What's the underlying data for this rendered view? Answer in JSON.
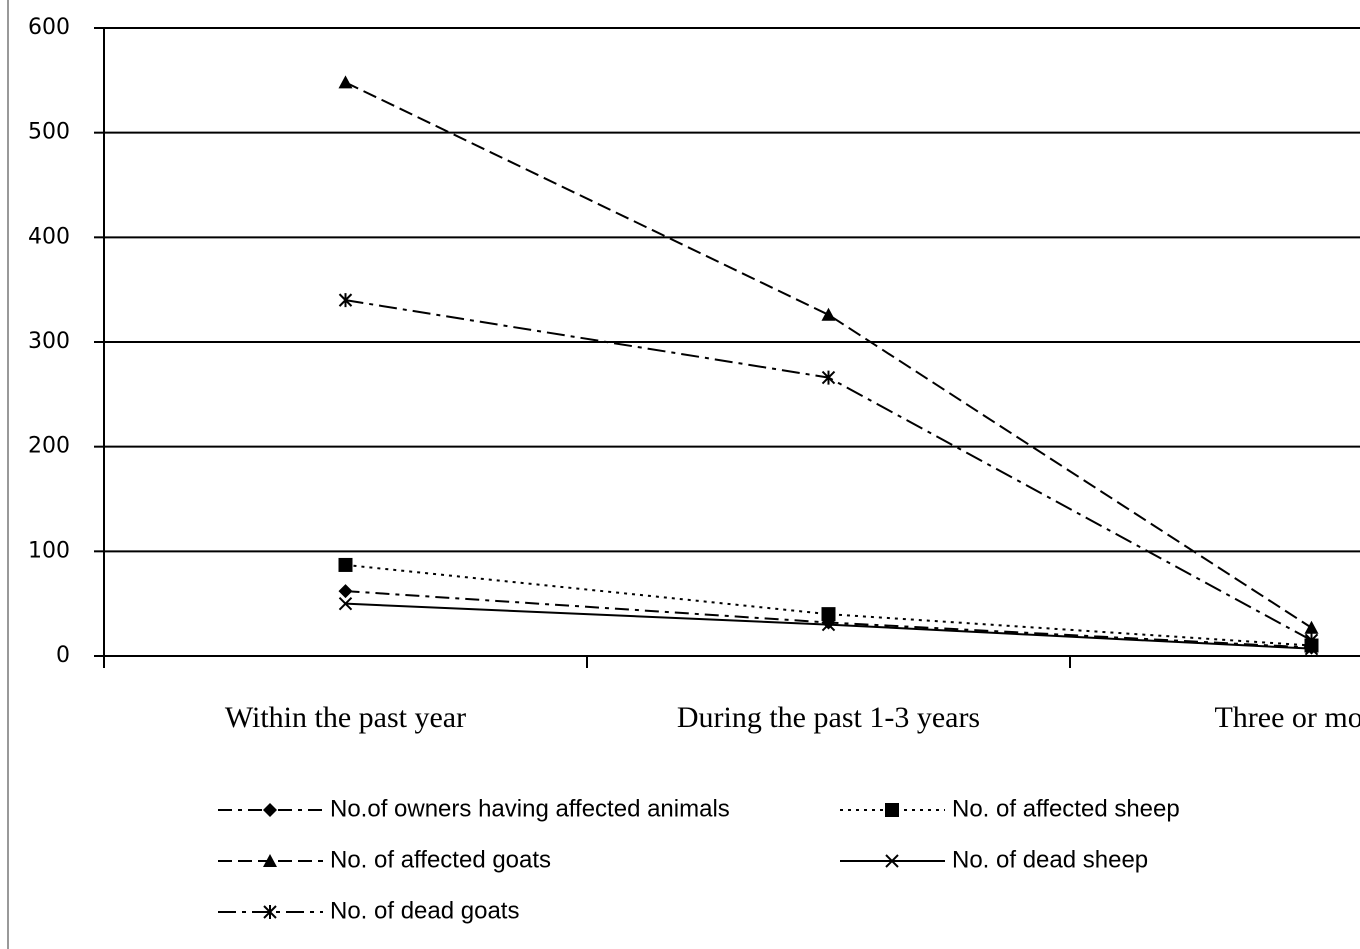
{
  "chart_data": {
    "type": "line",
    "categories": [
      "Within the past year",
      "During the past 1-3 years",
      "Three or more y"
    ],
    "ylim": [
      0,
      600
    ],
    "yticks": [
      0,
      100,
      200,
      300,
      400,
      500,
      600
    ],
    "grid": true,
    "series": [
      {
        "name": "No.of owners having affected animals",
        "color": "#000000",
        "dash": "14 6 4 6",
        "marker": "diamond",
        "values": [
          62,
          32,
          8
        ]
      },
      {
        "name": "No. of affected sheep",
        "color": "#000000",
        "dash": "3 5",
        "marker": "square",
        "values": [
          87,
          40,
          10
        ]
      },
      {
        "name": "No. of affected goats",
        "color": "#000000",
        "dash": "14 6",
        "marker": "triangle",
        "values": [
          548,
          326,
          27
        ]
      },
      {
        "name": "No. of dead sheep",
        "color": "#000000",
        "dash": "none",
        "marker": "x",
        "values": [
          50,
          30,
          7
        ]
      },
      {
        "name": "No. of dead goats",
        "color": "#000000",
        "dash": "18 6 4 6",
        "marker": "asterisk",
        "values": [
          340,
          266,
          15
        ]
      }
    ]
  }
}
